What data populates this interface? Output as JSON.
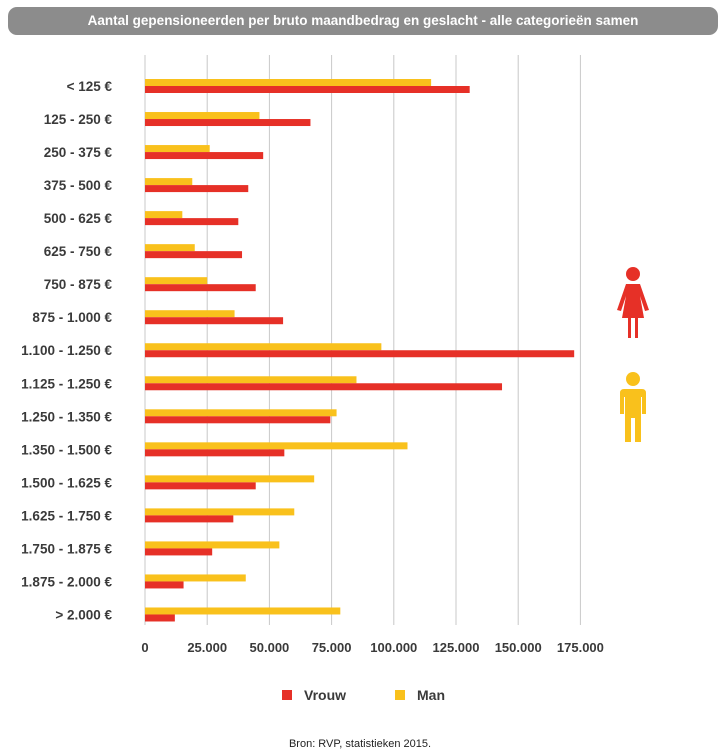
{
  "chart_data": {
    "type": "bar",
    "orientation": "horizontal",
    "title": "Aantal gepensioneerden per bruto maandbedrag en geslacht - alle categorieën samen",
    "categories": [
      "< 125 €",
      "125 - 250 €",
      "250 - 375 €",
      "375 - 500 €",
      "500 - 625 €",
      "625 - 750 €",
      "750 - 875 €",
      "875 - 1.000 €",
      "1.100 - 1.250 €",
      "1.125 - 1.250 €",
      "1.250 - 1.350 €",
      "1.350 - 1.500 €",
      "1.500 - 1.625 €",
      "1.625 - 1.750 €",
      "1.750 - 1.875 €",
      "1.875 - 2.000 €",
      "> 2.000 €"
    ],
    "series": [
      {
        "name": "Vrouw",
        "color": "#e63027",
        "values": [
          130500,
          66500,
          47500,
          41500,
          37500,
          39000,
          44500,
          55500,
          172500,
          143500,
          74500,
          56000,
          44500,
          35500,
          27000,
          15500,
          12000
        ]
      },
      {
        "name": "Man",
        "color": "#f9c11c",
        "values": [
          115000,
          46000,
          26000,
          19000,
          15000,
          20000,
          25000,
          36000,
          95000,
          85000,
          77000,
          105500,
          68000,
          60000,
          54000,
          40500,
          78500
        ]
      }
    ],
    "xlim": [
      0,
      200000
    ],
    "xticks": [
      0,
      25000,
      50000,
      75000,
      100000,
      125000,
      150000,
      175000
    ],
    "xtick_labels": [
      "0",
      "25.000",
      "50.000",
      "75.000",
      "100.000",
      "125.000",
      "150.000",
      "175.000"
    ],
    "grid": true,
    "legend_position": "bottom"
  },
  "legend": {
    "vrouw": "Vrouw",
    "man": "Man"
  },
  "icons": {
    "female": "female-figure-icon",
    "male": "male-figure-icon"
  },
  "source": "Bron: RVP, statistieken 2015."
}
